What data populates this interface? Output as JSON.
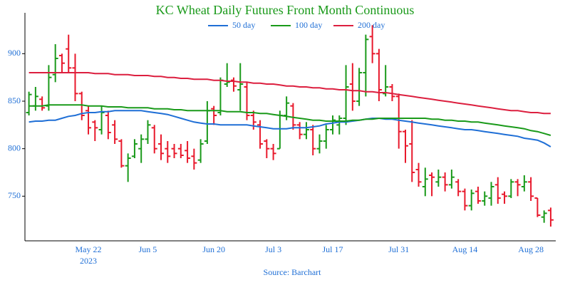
{
  "chart_data": {
    "type": "ohlc",
    "title": "KC Wheat Daily Futures Front Month Continuous",
    "source": "Source: Barchart",
    "year_label": "2023",
    "categories": [
      null,
      null,
      null,
      null,
      null,
      null,
      null,
      null,
      null,
      "May 22",
      null,
      null,
      null,
      null,
      null,
      null,
      null,
      null,
      "Jun 5",
      null,
      null,
      null,
      null,
      null,
      null,
      null,
      null,
      null,
      "Jun 20",
      null,
      null,
      null,
      null,
      null,
      null,
      null,
      null,
      "Jul 3",
      null,
      null,
      null,
      null,
      null,
      null,
      null,
      null,
      "Jul 17",
      null,
      null,
      null,
      null,
      null,
      null,
      null,
      null,
      null,
      "Jul 31",
      null,
      null,
      null,
      null,
      null,
      null,
      null,
      null,
      null,
      "Aug 14",
      null,
      null,
      null,
      null,
      null,
      null,
      null,
      null,
      null,
      "Aug 28",
      null,
      null,
      null
    ],
    "ylim": [
      703,
      943
    ],
    "yticks": [
      750,
      800,
      850,
      900
    ],
    "up_color": "#1a9a1a",
    "down_color": "#e8192c",
    "ohlc": [
      [
        838,
        860,
        835,
        857
      ],
      [
        845,
        865,
        840,
        855
      ],
      [
        852,
        855,
        840,
        843
      ],
      [
        845,
        888,
        840,
        875
      ],
      [
        878,
        910,
        870,
        895
      ],
      [
        898,
        900,
        880,
        890
      ],
      [
        905,
        920,
        880,
        885
      ],
      [
        885,
        900,
        850,
        858
      ],
      [
        858,
        860,
        830,
        835
      ],
      [
        840,
        845,
        815,
        822
      ],
      [
        828,
        830,
        808,
        822
      ],
      [
        820,
        845,
        815,
        838
      ],
      [
        835,
        840,
        810,
        817
      ],
      [
        825,
        830,
        805,
        810
      ],
      [
        808,
        810,
        780,
        782
      ],
      [
        782,
        795,
        765,
        790
      ],
      [
        792,
        810,
        790,
        805
      ],
      [
        800,
        815,
        785,
        810
      ],
      [
        810,
        830,
        805,
        825
      ],
      [
        822,
        825,
        795,
        800
      ],
      [
        805,
        815,
        788,
        795
      ],
      [
        800,
        808,
        785,
        792
      ],
      [
        800,
        805,
        790,
        795
      ],
      [
        800,
        805,
        790,
        793
      ],
      [
        798,
        808,
        785,
        790
      ],
      [
        792,
        800,
        778,
        785
      ],
      [
        788,
        810,
        785,
        805
      ],
      [
        808,
        850,
        805,
        840
      ],
      [
        842,
        845,
        825,
        835
      ],
      [
        838,
        875,
        835,
        872
      ],
      [
        868,
        890,
        865,
        870
      ],
      [
        872,
        875,
        860,
        866
      ],
      [
        862,
        890,
        840,
        868
      ],
      [
        865,
        870,
        830,
        835
      ],
      [
        835,
        840,
        820,
        828
      ],
      [
        825,
        830,
        800,
        805
      ],
      [
        808,
        810,
        790,
        800
      ],
      [
        800,
        805,
        788,
        795
      ],
      [
        800,
        840,
        800,
        835
      ],
      [
        835,
        855,
        830,
        848
      ],
      [
        845,
        848,
        820,
        825
      ],
      [
        825,
        828,
        810,
        815
      ],
      [
        815,
        828,
        810,
        820
      ],
      [
        820,
        825,
        793,
        800
      ],
      [
        800,
        815,
        795,
        808
      ],
      [
        808,
        825,
        800,
        820
      ],
      [
        820,
        835,
        815,
        830
      ],
      [
        825,
        835,
        815,
        832
      ],
      [
        832,
        888,
        825,
        865
      ],
      [
        868,
        890,
        840,
        850
      ],
      [
        850,
        885,
        845,
        880
      ],
      [
        880,
        920,
        855,
        915
      ],
      [
        918,
        930,
        890,
        900
      ],
      [
        900,
        905,
        850,
        862
      ],
      [
        858,
        888,
        855,
        865
      ],
      [
        865,
        868,
        850,
        855
      ],
      [
        855,
        858,
        800,
        818
      ],
      [
        818,
        820,
        785,
        803
      ],
      [
        805,
        830,
        765,
        775
      ],
      [
        778,
        785,
        760,
        765
      ],
      [
        760,
        780,
        750,
        768
      ],
      [
        772,
        775,
        750,
        770
      ],
      [
        765,
        778,
        760,
        770
      ],
      [
        770,
        775,
        755,
        762
      ],
      [
        762,
        778,
        758,
        770
      ],
      [
        765,
        768,
        750,
        755
      ],
      [
        755,
        758,
        735,
        740
      ],
      [
        740,
        757,
        735,
        753
      ],
      [
        755,
        760,
        742,
        745
      ],
      [
        745,
        755,
        740,
        750
      ],
      [
        748,
        765,
        740,
        760
      ],
      [
        762,
        770,
        742,
        748
      ],
      [
        752,
        755,
        742,
        750
      ],
      [
        750,
        768,
        748,
        765
      ],
      [
        765,
        768,
        750,
        762
      ],
      [
        760,
        772,
        755,
        765
      ],
      [
        765,
        770,
        745,
        750
      ],
      [
        748,
        748,
        728,
        730
      ],
      [
        728,
        735,
        722,
        732
      ],
      [
        735,
        738,
        718,
        725
      ]
    ],
    "series": [
      {
        "name": "50 day",
        "color": "#1f6fd6",
        "values": [
          828,
          829,
          829,
          830,
          830,
          832,
          834,
          835,
          837,
          838,
          838,
          839,
          839,
          840,
          840,
          840,
          840,
          840,
          839,
          838,
          837,
          836,
          834,
          832,
          830,
          828,
          827,
          826,
          826,
          825,
          825,
          825,
          825,
          825,
          824,
          823,
          822,
          821,
          821,
          821,
          822,
          822,
          822,
          823,
          824,
          826,
          827,
          828,
          828,
          829,
          830,
          831,
          832,
          832,
          831,
          831,
          830,
          829,
          828,
          827,
          826,
          825,
          824,
          823,
          822,
          821,
          820,
          820,
          819,
          818,
          817,
          816,
          815,
          814,
          813,
          811,
          810,
          809,
          806,
          802
        ]
      },
      {
        "name": "100 day",
        "color": "#1a9a1a",
        "values": [
          845,
          845,
          845,
          846,
          846,
          846,
          846,
          846,
          846,
          845,
          845,
          845,
          844,
          844,
          844,
          843,
          843,
          843,
          843,
          842,
          842,
          842,
          841,
          841,
          840,
          840,
          840,
          840,
          840,
          840,
          839,
          839,
          839,
          838,
          838,
          837,
          837,
          836,
          835,
          834,
          833,
          832,
          831,
          830,
          830,
          829,
          829,
          829,
          829,
          830,
          830,
          831,
          831,
          832,
          832,
          832,
          832,
          832,
          832,
          832,
          832,
          831,
          831,
          830,
          830,
          829,
          829,
          828,
          828,
          827,
          826,
          825,
          824,
          823,
          822,
          821,
          819,
          818,
          816,
          814
        ]
      },
      {
        "name": "200 day",
        "color": "#dc1f3f",
        "values": [
          880,
          880,
          880,
          880,
          880,
          880,
          880,
          880,
          880,
          880,
          879,
          879,
          879,
          878,
          878,
          878,
          877,
          877,
          877,
          876,
          876,
          875,
          875,
          874,
          874,
          873,
          873,
          873,
          872,
          872,
          871,
          871,
          870,
          870,
          869,
          869,
          868,
          868,
          867,
          866,
          866,
          865,
          865,
          864,
          864,
          863,
          863,
          862,
          862,
          861,
          861,
          860,
          860,
          859,
          859,
          858,
          857,
          856,
          855,
          854,
          853,
          852,
          851,
          850,
          849,
          848,
          847,
          846,
          845,
          844,
          843,
          842,
          841,
          840,
          840,
          839,
          838,
          838,
          837,
          837
        ]
      }
    ]
  }
}
